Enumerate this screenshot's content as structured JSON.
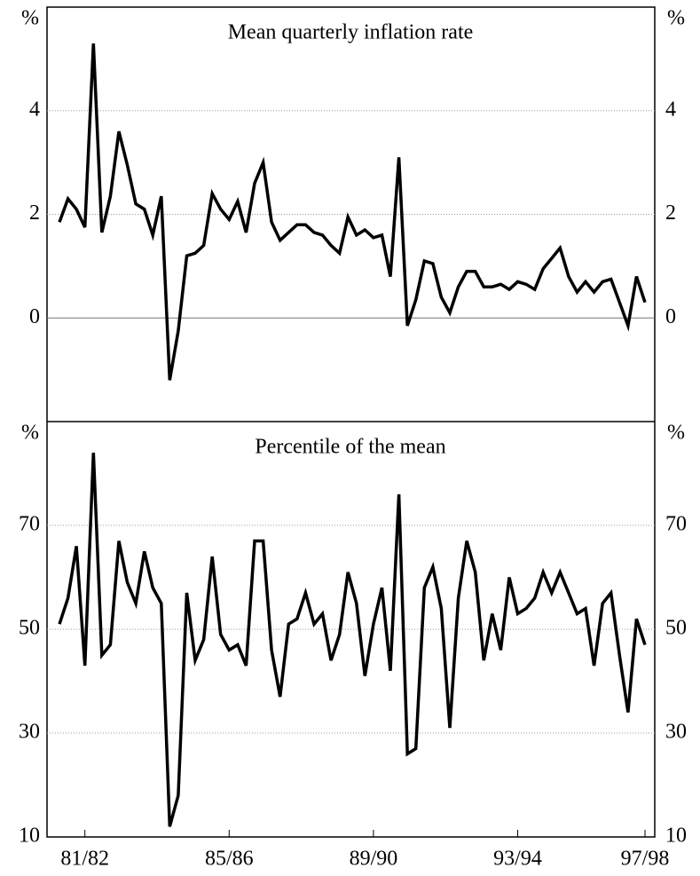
{
  "chart_data": [
    {
      "type": "line",
      "title": "Mean quarterly inflation rate",
      "y_unit": "%",
      "ylim": [
        -2,
        6
      ],
      "yticks": [
        0,
        2,
        4
      ],
      "grid": true,
      "color": "#000000",
      "values": [
        1.85,
        2.3,
        2.1,
        1.75,
        5.3,
        1.65,
        2.35,
        3.6,
        2.95,
        2.2,
        2.1,
        1.6,
        2.35,
        -1.2,
        -0.25,
        1.2,
        1.25,
        1.4,
        2.4,
        2.1,
        1.9,
        2.25,
        1.65,
        2.6,
        3.0,
        1.85,
        1.5,
        1.65,
        1.8,
        1.8,
        1.65,
        1.6,
        1.4,
        1.25,
        1.95,
        1.6,
        1.7,
        1.55,
        1.6,
        0.8,
        3.1,
        -0.15,
        0.35,
        1.1,
        1.05,
        0.4,
        0.1,
        0.6,
        0.9,
        0.9,
        0.6,
        0.6,
        0.65,
        0.55,
        0.7,
        0.65,
        0.55,
        0.95,
        1.15,
        1.35,
        0.8,
        0.5,
        0.7,
        0.5,
        0.7,
        0.75,
        0.3,
        -0.15,
        0.8,
        0.3
      ]
    },
    {
      "type": "line",
      "title": "Percentile of the mean",
      "y_unit": "%",
      "ylim": [
        10,
        90
      ],
      "yticks": [
        10,
        30,
        50,
        70
      ],
      "grid": true,
      "color": "#000000",
      "categories": [
        null,
        null,
        null,
        "81/82",
        null,
        null,
        null,
        null,
        null,
        null,
        null,
        null,
        null,
        null,
        null,
        null,
        null,
        null,
        null,
        null,
        "85/86",
        null,
        null,
        null,
        null,
        null,
        null,
        null,
        null,
        null,
        null,
        null,
        null,
        null,
        null,
        null,
        null,
        "89/90",
        null,
        null,
        null,
        null,
        null,
        null,
        null,
        null,
        null,
        null,
        null,
        null,
        null,
        null,
        null,
        null,
        "93/94",
        null,
        null,
        null,
        null,
        null,
        null,
        null,
        null,
        null,
        null,
        null,
        null,
        null,
        null,
        "97/98"
      ],
      "values": [
        51,
        56,
        66,
        43,
        84,
        45,
        47,
        67,
        59,
        55,
        65,
        58,
        55,
        12,
        18,
        57,
        44,
        48,
        64,
        49,
        46,
        47,
        43,
        67,
        67,
        46,
        37,
        51,
        52,
        57,
        51,
        53,
        44,
        49,
        61,
        55,
        41,
        51,
        58,
        42,
        76,
        26,
        27,
        58,
        62,
        54,
        31,
        56,
        67,
        61,
        44,
        53,
        46,
        60,
        53,
        54,
        56,
        61,
        57,
        61,
        57,
        53,
        54,
        43,
        55,
        57,
        45,
        34,
        52,
        47
      ]
    }
  ]
}
